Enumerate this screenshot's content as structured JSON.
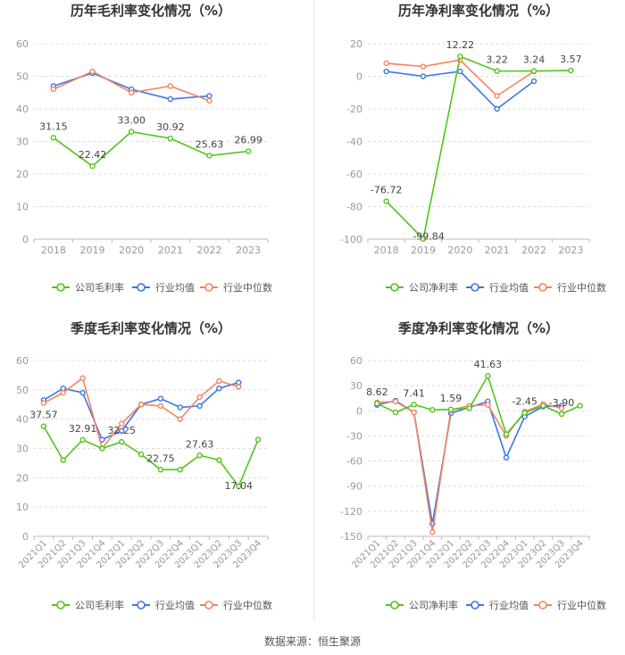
{
  "colors": {
    "company": "#52c41a",
    "avg": "#3a76e6",
    "median": "#f5845d",
    "axis": "#999999",
    "grid": "#dcdcdc",
    "title": "#333333"
  },
  "legend": {
    "gross": "公司毛利率",
    "net": "公司净利率",
    "avg": "行业均值",
    "median": "行业中位数"
  },
  "source": "数据来源：恒生聚源",
  "chart_data": [
    {
      "type": "line",
      "title": "历年毛利率变化情况（%）",
      "categories": [
        "2018",
        "2019",
        "2020",
        "2021",
        "2022",
        "2023"
      ],
      "ylim": [
        0,
        60
      ],
      "yticks": [
        0,
        10,
        20,
        30,
        40,
        50,
        60
      ],
      "series": [
        {
          "name": "公司毛利率",
          "role": "company",
          "values": [
            31.15,
            22.42,
            33.0,
            30.92,
            25.63,
            26.99
          ],
          "labels": [
            "31.15",
            "22.42",
            "33.00",
            "30.92",
            "25.63",
            "26.99"
          ]
        },
        {
          "name": "行业均值",
          "role": "avg",
          "values": [
            47.0,
            51.0,
            46.0,
            43.0,
            44.0,
            null
          ]
        },
        {
          "name": "行业中位数",
          "role": "median",
          "values": [
            46.0,
            51.5,
            45.0,
            47.0,
            42.5,
            null
          ]
        }
      ]
    },
    {
      "type": "line",
      "title": "历年净利率变化情况（%）",
      "categories": [
        "2018",
        "2019",
        "2020",
        "2021",
        "2022",
        "2023"
      ],
      "ylim": [
        -100,
        20
      ],
      "yticks": [
        -100,
        -80,
        -60,
        -40,
        -20,
        0,
        20
      ],
      "series": [
        {
          "name": "公司净利率",
          "role": "company",
          "values": [
            -76.72,
            -99.84,
            12.22,
            3.22,
            3.24,
            3.57
          ],
          "labels": [
            "-76.72",
            "-99.84",
            "12.22",
            "3.22",
            "3.24",
            "3.57"
          ]
        },
        {
          "name": "行业均值",
          "role": "avg",
          "values": [
            3.0,
            0.0,
            3.0,
            -20.0,
            -3.0,
            null
          ]
        },
        {
          "name": "行业中位数",
          "role": "median",
          "values": [
            8.0,
            6.0,
            10.0,
            -12.0,
            3.0,
            null
          ]
        }
      ]
    },
    {
      "type": "line",
      "title": "季度毛利率变化情况（%）",
      "categories": [
        "2021Q1",
        "2021Q2",
        "2021Q3",
        "2021Q4",
        "2022Q1",
        "2022Q2",
        "2022Q3",
        "2022Q4",
        "2023Q1",
        "2023Q2",
        "2023Q3",
        "2023Q4"
      ],
      "ylim": [
        0,
        60
      ],
      "yticks": [
        0,
        10,
        20,
        30,
        40,
        50,
        60
      ],
      "series": [
        {
          "name": "公司毛利率",
          "role": "company",
          "values": [
            37.57,
            26.0,
            32.91,
            30.0,
            32.25,
            28.0,
            22.75,
            22.75,
            27.63,
            26.0,
            17.04,
            33.0
          ],
          "labels": [
            "37.57",
            null,
            "32.91",
            null,
            "32.25",
            null,
            "22.75",
            null,
            "27.63",
            null,
            "17.04",
            null
          ]
        },
        {
          "name": "行业均值",
          "role": "avg",
          "values": [
            46.5,
            50.5,
            49.0,
            33.0,
            36.0,
            45.0,
            47.0,
            44.0,
            44.5,
            50.5,
            52.5,
            null
          ]
        },
        {
          "name": "行业中位数",
          "role": "median",
          "values": [
            45.5,
            49.0,
            54.0,
            30.0,
            38.5,
            45.0,
            44.5,
            40.0,
            47.5,
            53.0,
            51.0,
            null
          ]
        }
      ]
    },
    {
      "type": "line",
      "title": "季度净利率变化情况（%）",
      "categories": [
        "2021Q1",
        "2021Q2",
        "2021Q3",
        "2021Q4",
        "2022Q1",
        "2022Q2",
        "2022Q3",
        "2022Q4",
        "2023Q1",
        "2023Q2",
        "2023Q3",
        "2023Q4"
      ],
      "ylim": [
        -150,
        60
      ],
      "yticks": [
        -150,
        -120,
        -90,
        -60,
        -30,
        0,
        30,
        60
      ],
      "series": [
        {
          "name": "公司净利率",
          "role": "company",
          "values": [
            8.62,
            -2.0,
            7.41,
            1.0,
            1.59,
            3.0,
            41.63,
            -28.0,
            -2.45,
            6.0,
            -3.9,
            6.0
          ],
          "labels": [
            "8.62",
            null,
            "7.41",
            null,
            "1.59",
            null,
            "41.63",
            null,
            "-2.45",
            null,
            "-3.90",
            null
          ]
        },
        {
          "name": "行业均值",
          "role": "avg",
          "values": [
            7.0,
            12.0,
            -2.0,
            -135.0,
            -3.0,
            4.0,
            11.0,
            -56.0,
            -7.0,
            5.0,
            6.0,
            null
          ]
        },
        {
          "name": "行业中位数",
          "role": "median",
          "values": [
            10.0,
            11.0,
            -2.0,
            -145.0,
            1.0,
            6.0,
            7.0,
            -30.0,
            -1.0,
            8.0,
            3.0,
            null
          ]
        }
      ]
    }
  ]
}
